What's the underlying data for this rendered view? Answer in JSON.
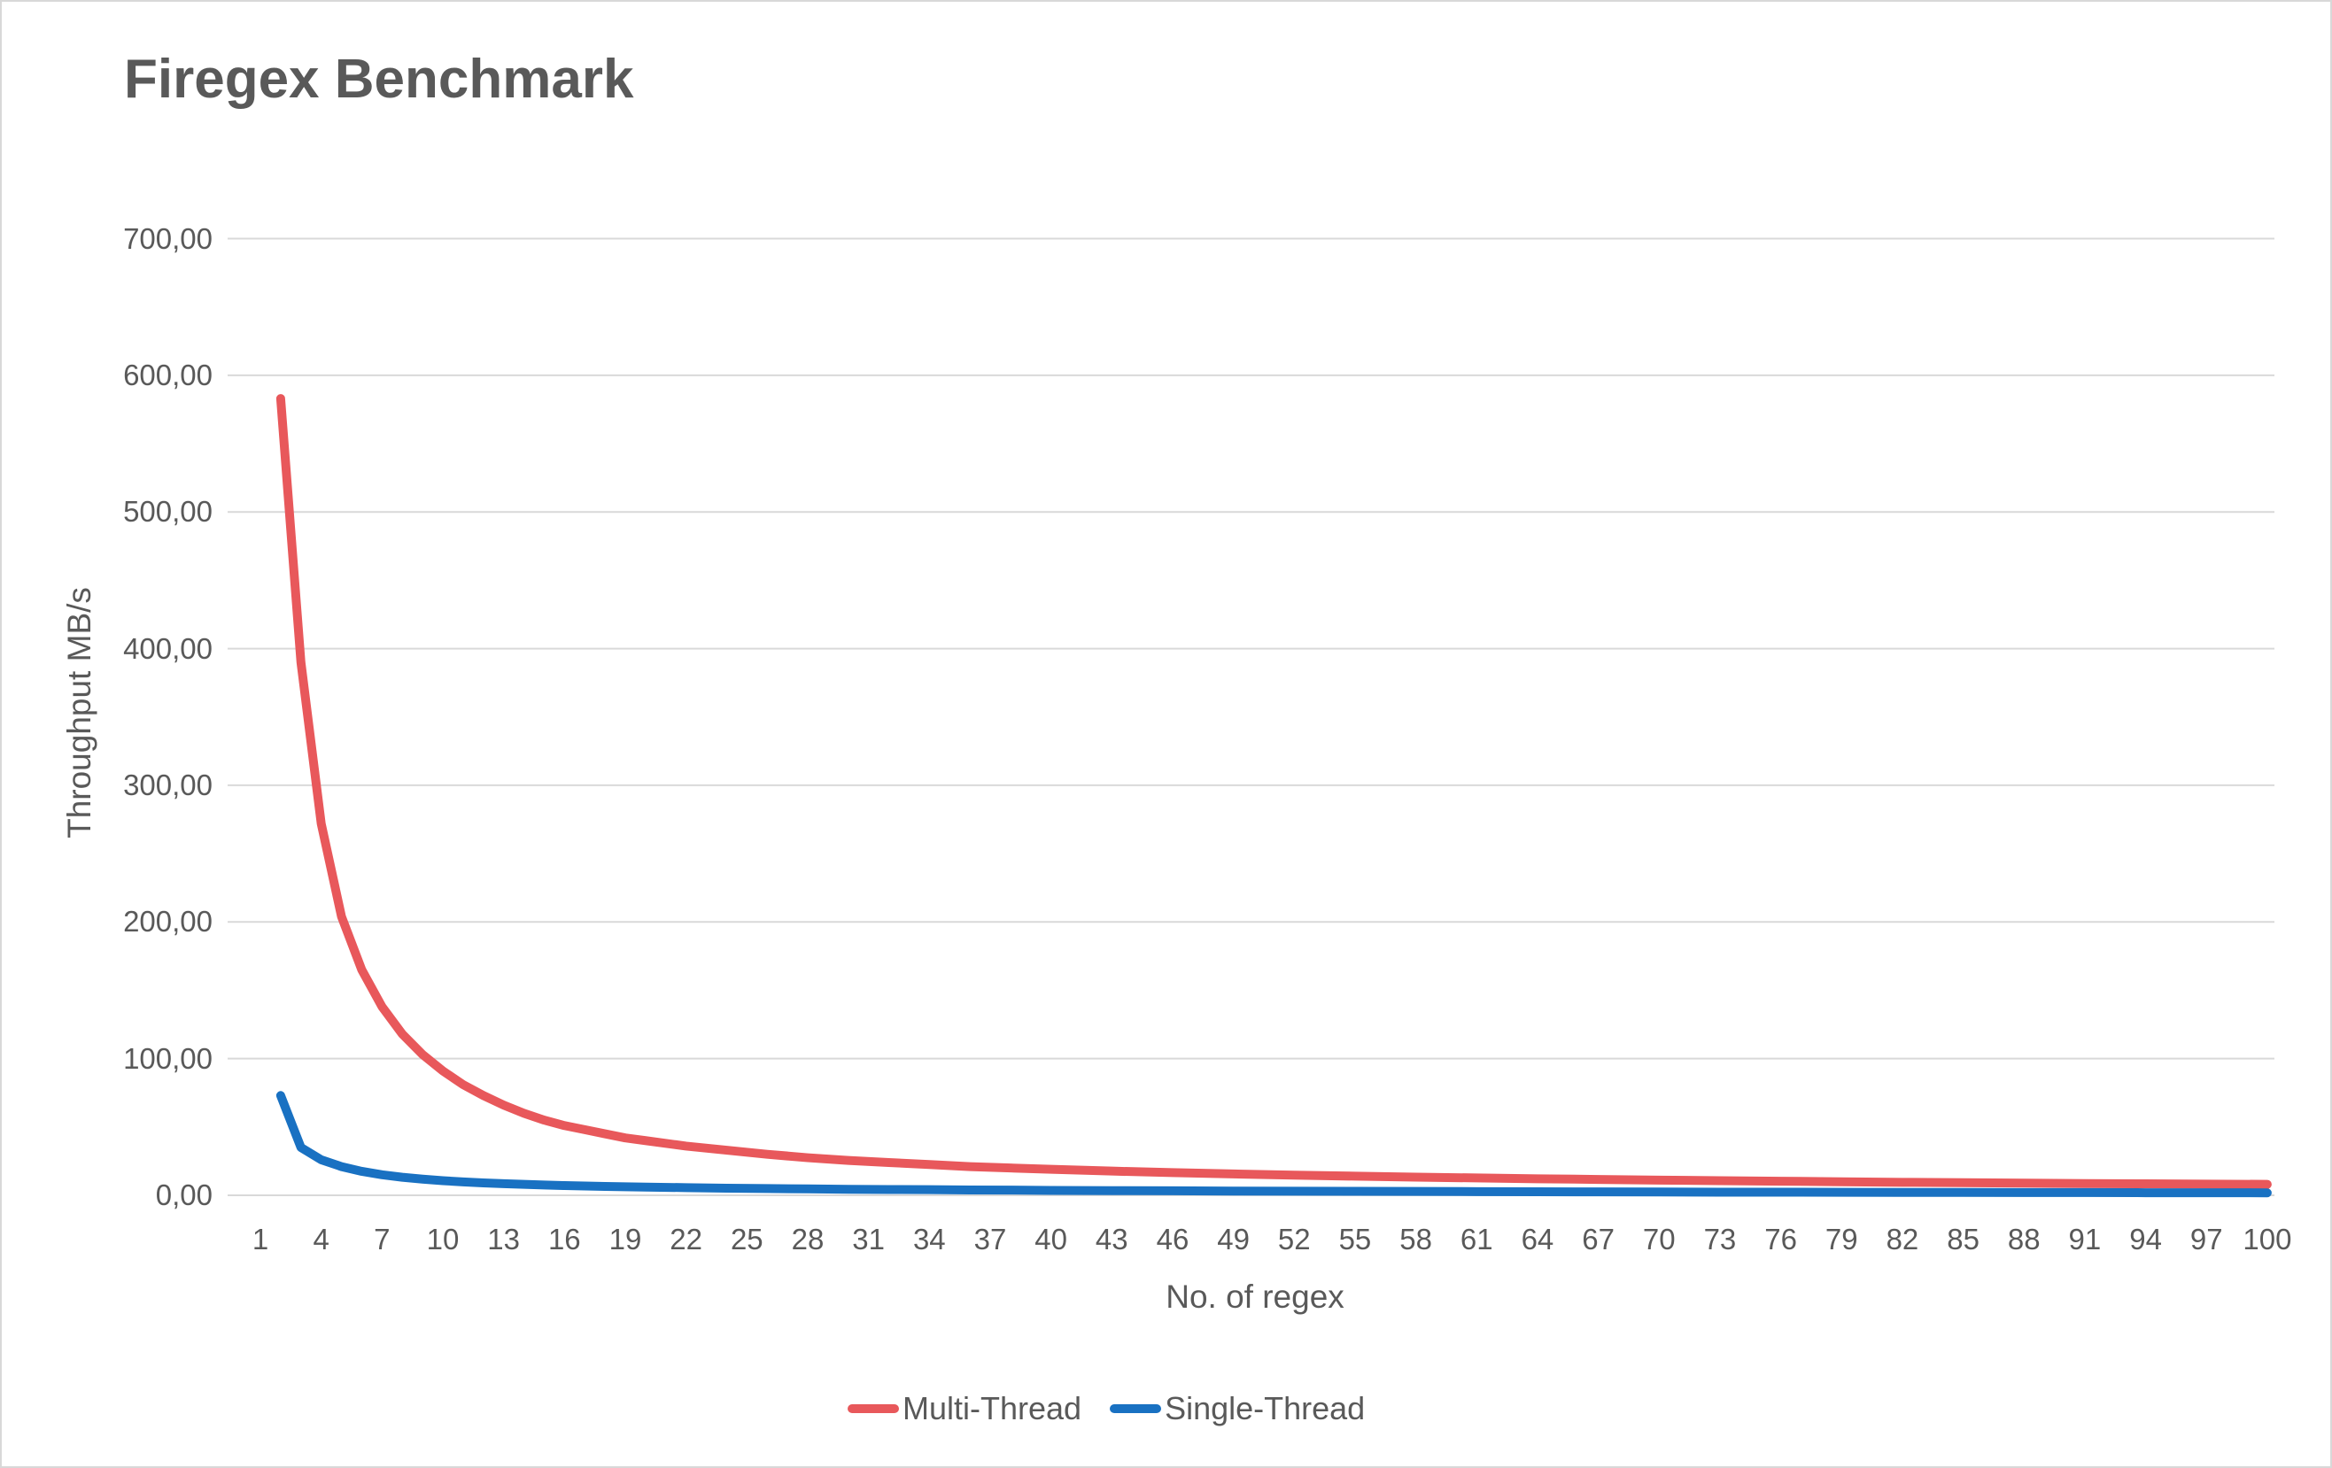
{
  "page": {
    "background": "#ffffff",
    "border_color": "#d8d8d8"
  },
  "chart_data": {
    "type": "line",
    "title": "Firegex Benchmark",
    "xlabel": "No. of regex",
    "ylabel": "Throughput MB/s",
    "grid": "horizontal",
    "legend_position": "bottom",
    "xlim": [
      1,
      100
    ],
    "ylim": [
      0,
      700
    ],
    "x_tick_labels": [
      "1",
      "4",
      "7",
      "10",
      "13",
      "16",
      "19",
      "22",
      "25",
      "28",
      "31",
      "34",
      "37",
      "40",
      "43",
      "46",
      "49",
      "52",
      "55",
      "58",
      "61",
      "64",
      "67",
      "70",
      "73",
      "76",
      "79",
      "82",
      "85",
      "88",
      "91",
      "94",
      "97",
      "100"
    ],
    "y_ticks": [
      {
        "value": 0,
        "label": "0,00"
      },
      {
        "value": 100,
        "label": "100,00"
      },
      {
        "value": 200,
        "label": "200,00"
      },
      {
        "value": 300,
        "label": "300,00"
      },
      {
        "value": 400,
        "label": "400,00"
      },
      {
        "value": 500,
        "label": "500,00"
      },
      {
        "value": 600,
        "label": "600,00"
      },
      {
        "value": 700,
        "label": "700,00"
      }
    ],
    "x": [
      2,
      3,
      4,
      5,
      6,
      7,
      8,
      9,
      10,
      11,
      12,
      13,
      14,
      15,
      16,
      17,
      18,
      19,
      20,
      22,
      24,
      26,
      28,
      30,
      32,
      34,
      36,
      38,
      40,
      43,
      46,
      49,
      52,
      55,
      58,
      61,
      64,
      67,
      70,
      73,
      76,
      79,
      82,
      85,
      88,
      91,
      94,
      97,
      100
    ],
    "series": [
      {
        "name": "Multi-Thread",
        "color": "#e8585b",
        "values": [
          583,
          390,
          272,
          204,
          165,
          138,
          118,
          103,
          91,
          81,
          73,
          66,
          60,
          55,
          51,
          48,
          45,
          42,
          40,
          36,
          33,
          30,
          27.5,
          25.5,
          24,
          22.5,
          21,
          20,
          19,
          17.7,
          16.6,
          15.6,
          14.7,
          14,
          13.3,
          12.7,
          12.1,
          11.6,
          11.1,
          10.7,
          10.3,
          9.9,
          9.5,
          9.2,
          8.9,
          8.6,
          8.4,
          8.2,
          8
        ]
      },
      {
        "name": "Single-Thread",
        "color": "#1971c2",
        "values": [
          73,
          35,
          26,
          21,
          17.5,
          15,
          13.2,
          11.8,
          10.7,
          9.8,
          9.1,
          8.5,
          8,
          7.5,
          7.1,
          6.8,
          6.5,
          6.2,
          6,
          5.6,
          5.2,
          4.9,
          4.7,
          4.4,
          4.2,
          4.1,
          3.9,
          3.8,
          3.6,
          3.4,
          3.3,
          3.1,
          3,
          2.9,
          2.8,
          2.7,
          2.6,
          2.5,
          2.4,
          2.3,
          2.3,
          2.2,
          2.1,
          2.1,
          2,
          2,
          1.9,
          1.9,
          1.8
        ]
      }
    ],
    "colors": {
      "text": "#595959",
      "grid": "#d9d9d9"
    }
  }
}
